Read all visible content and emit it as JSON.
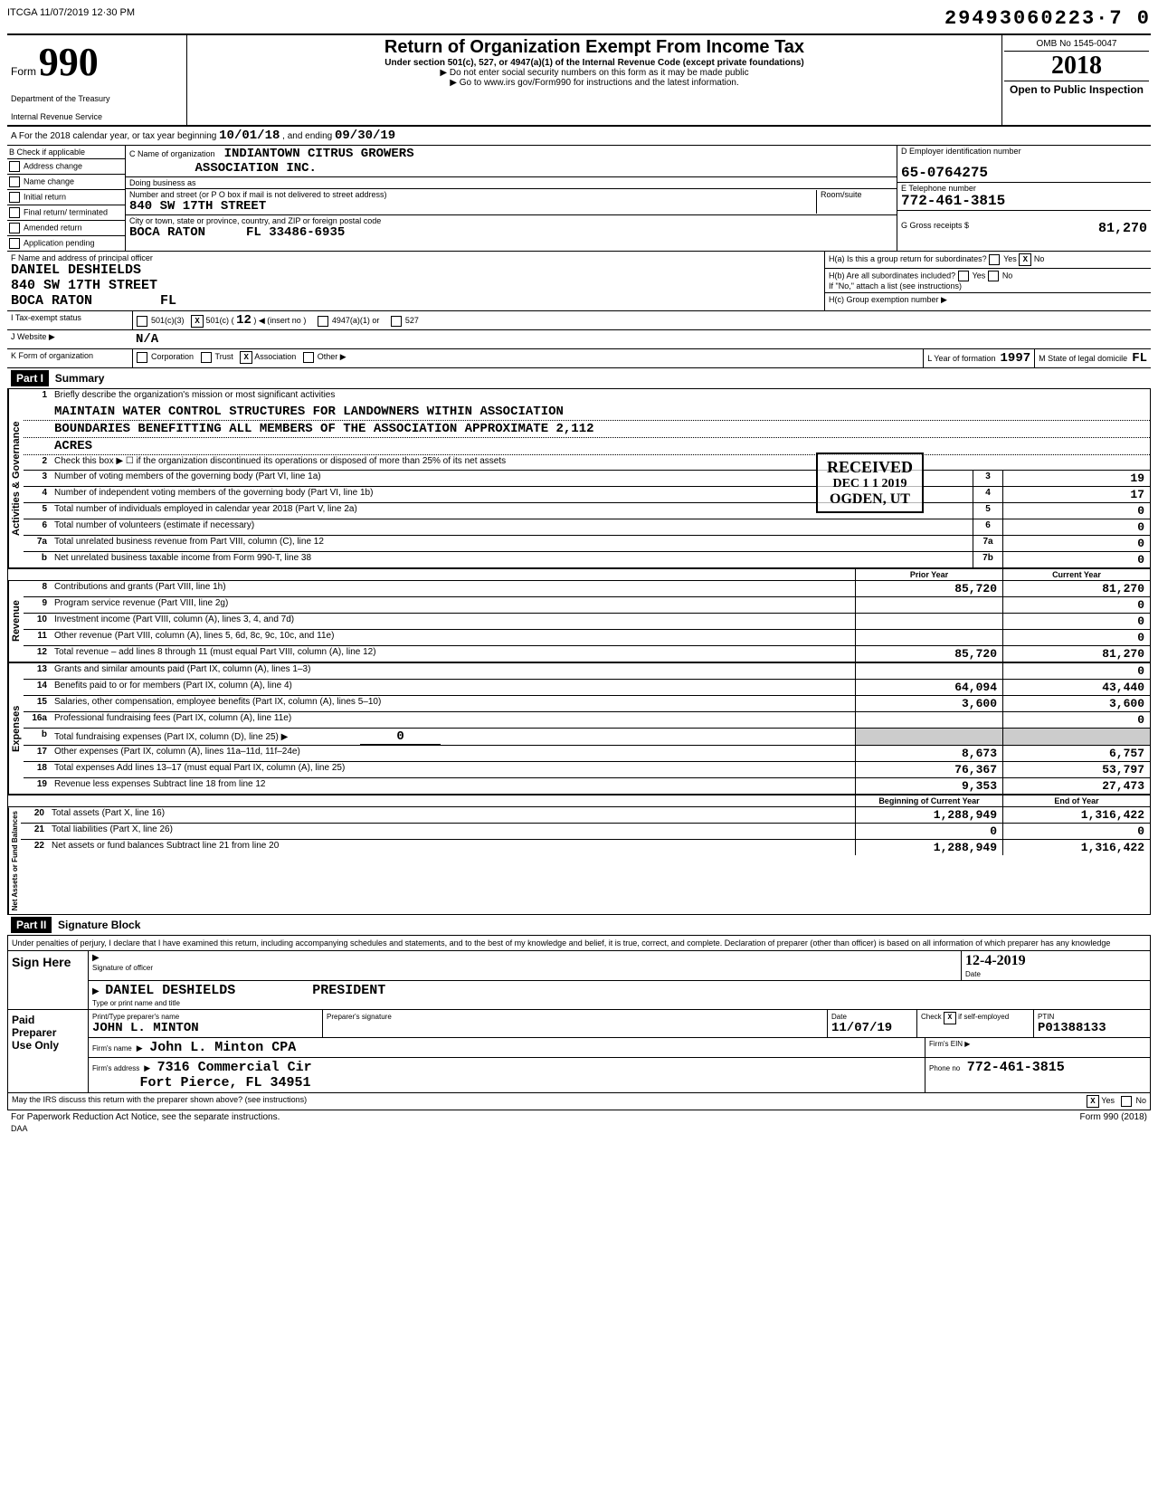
{
  "meta": {
    "software_stamp": "ITCGA 11/07/2019 12·30 PM",
    "dln": "29493060223·7  0",
    "omb": "OMB No 1545-0047",
    "tax_year": "2018",
    "open": "Open to Public Inspection",
    "form_footer": "Form 990 (2018)",
    "daa": "DAA",
    "paperwork": "For Paperwork Reduction Act Notice, see the separate instructions."
  },
  "header": {
    "form_label": "Form",
    "form_number": "990",
    "dept": "Department of the Treasury",
    "irs": "Internal Revenue Service",
    "title": "Return of Organization Exempt From Income Tax",
    "subtitle": "Under section 501(c), 527, or 4947(a)(1) of the Internal Revenue Code (except private foundations)",
    "note1": "▶ Do not enter social security numbers on this form as it may be made public",
    "note2": "▶ Go to www.irs gov/Form990 for instructions and the latest information."
  },
  "line_a": {
    "prefix": "A  For the 2018 calendar year, or tax year beginning",
    "begin": "10/01/18",
    "mid": ", and ending",
    "end": "09/30/19"
  },
  "col_b": {
    "label": "B  Check if applicable",
    "opts": [
      "Address change",
      "Name change",
      "Initial return",
      "Final return/ terminated",
      "Amended return",
      "Application pending"
    ]
  },
  "col_c": {
    "label_name": "C  Name of organization",
    "org_name1": "INDIANTOWN CITRUS GROWERS",
    "org_name2": "ASSOCIATION INC.",
    "dba_label": "Doing business as",
    "addr_label": "Number and street (or P O box if mail is not delivered to street address)",
    "street": "840 SW 17TH STREET",
    "room_label": "Room/suite",
    "city_label": "City or town, state or province, country, and ZIP or foreign postal code",
    "city": "BOCA RATON",
    "state_zip": "FL 33486-6935"
  },
  "col_de": {
    "d_label": "D Employer identification number",
    "ein": "65-0764275",
    "e_label": "E Telephone number",
    "phone": "772-461-3815",
    "g_label": "G Gross receipts $",
    "gross": "81,270"
  },
  "section_f": {
    "label": "F  Name and address of principal officer",
    "name": "DANIEL DESHIELDS",
    "street": "840 SW 17TH STREET",
    "city": "BOCA RATON",
    "state": "FL"
  },
  "section_h": {
    "ha": "H(a) Is this a group return for subordinates?",
    "ha_yes": "Yes",
    "ha_no": "No",
    "ha_no_x": "X",
    "hb": "H(b) Are all subordinates included?",
    "hb_note": "If \"No,\" attach a list (see instructions)",
    "hc": "H(c) Group exemption number ▶"
  },
  "row_i": {
    "label": "I   Tax-exempt status",
    "opt1": "501(c)(3)",
    "opt2_x": "X",
    "opt2": "501(c)",
    "opt2_num": "12",
    "opt2_insert": "◀ (insert no )",
    "opt3": "4947(a)(1) or",
    "opt4": "527"
  },
  "row_j": {
    "label": "J   Website ▶",
    "value": "N/A"
  },
  "row_k": {
    "label": "K  Form of organization",
    "opts": [
      "Corporation",
      "Trust",
      "Association",
      "Other ▶"
    ],
    "assoc_x": "X",
    "l_label": "L  Year of formation",
    "l_val": "1997",
    "m_label": "M  State of legal domicile",
    "m_val": "FL"
  },
  "part1": {
    "label": "Part I",
    "title": "Summary"
  },
  "governance": {
    "side": "Activities & Governance",
    "line1_label": "Briefly describe the organization's mission or most significant activities",
    "mission1": "MAINTAIN WATER CONTROL STRUCTURES FOR LANDOWNERS WITHIN ASSOCIATION",
    "mission2": "BOUNDARIES BENEFITTING ALL MEMBERS OF THE ASSOCIATION APPROXIMATE 2,112",
    "mission3": "ACRES",
    "line2": "Check this box ▶ ☐  if the organization discontinued its operations or disposed of more than 25% of its net assets",
    "line3": "Number of voting members of the governing body (Part VI, line 1a)",
    "line3_val": "19",
    "line4": "Number of independent voting members of the governing body (Part VI, line 1b)",
    "line4_val": "17",
    "line5": "Total number of individuals employed in calendar year 2018 (Part V, line 2a)",
    "line5_val": "0",
    "line6": "Total number of volunteers (estimate if necessary)",
    "line6_val": "0",
    "line7a": "Total unrelated business revenue from Part VIII, column (C), line 12",
    "line7a_val": "0",
    "line7b": "Net unrelated business taxable income from Form 990-T, line 38",
    "line7b_val": "0"
  },
  "stamps": {
    "received": "RECEIVED",
    "date": "DEC 1 1 2019",
    "ogden": "OGDEN, UT",
    "irs_osc": "IRS-OSC"
  },
  "cols": {
    "prior": "Prior Year",
    "current": "Current Year"
  },
  "revenue": {
    "side": "Revenue",
    "rows": [
      {
        "n": "8",
        "d": "Contributions and grants (Part VIII, line 1h)",
        "p": "85,720",
        "c": "81,270"
      },
      {
        "n": "9",
        "d": "Program service revenue (Part VIII, line 2g)",
        "p": "",
        "c": "0"
      },
      {
        "n": "10",
        "d": "Investment income (Part VIII, column (A), lines 3, 4, and 7d)",
        "p": "",
        "c": "0"
      },
      {
        "n": "11",
        "d": "Other revenue (Part VIII, column (A), lines 5, 6d, 8c, 9c, 10c, and 11e)",
        "p": "",
        "c": "0"
      },
      {
        "n": "12",
        "d": "Total revenue – add lines 8 through 11 (must equal Part VIII, column (A), line 12)",
        "p": "85,720",
        "c": "81,270"
      }
    ]
  },
  "expenses": {
    "side": "Expenses",
    "rows": [
      {
        "n": "13",
        "d": "Grants and similar amounts paid (Part IX, column (A), lines 1–3)",
        "p": "",
        "c": "0"
      },
      {
        "n": "14",
        "d": "Benefits paid to or for members (Part IX, column (A), line 4)",
        "p": "64,094",
        "c": "43,440"
      },
      {
        "n": "15",
        "d": "Salaries, other compensation, employee benefits (Part IX, column (A), lines 5–10)",
        "p": "3,600",
        "c": "3,600"
      },
      {
        "n": "16a",
        "d": "Professional fundraising fees (Part IX, column (A), line 11e)",
        "p": "",
        "c": "0"
      },
      {
        "n": "b",
        "d": "Total fundraising expenses (Part IX, column (D), line 25) ▶",
        "p": "grey",
        "c": "grey",
        "inline": "0"
      },
      {
        "n": "17",
        "d": "Other expenses (Part IX, column (A), lines 11a–11d, 11f–24e)",
        "p": "8,673",
        "c": "6,757"
      },
      {
        "n": "18",
        "d": "Total expenses  Add lines 13–17 (must equal Part IX, column (A), line 25)",
        "p": "76,367",
        "c": "53,797"
      },
      {
        "n": "19",
        "d": "Revenue less expenses  Subtract line 18 from line 12",
        "p": "9,353",
        "c": "27,473"
      }
    ]
  },
  "netassets": {
    "side": "Net Assets or Fund Balances",
    "hdr_p": "Beginning of Current Year",
    "hdr_c": "End of Year",
    "rows": [
      {
        "n": "20",
        "d": "Total assets (Part X, line 16)",
        "p": "1,288,949",
        "c": "1,316,422"
      },
      {
        "n": "21",
        "d": "Total liabilities (Part X, line 26)",
        "p": "0",
        "c": "0"
      },
      {
        "n": "22",
        "d": "Net assets or fund balances  Subtract line 21 from line 20",
        "p": "1,288,949",
        "c": "1,316,422"
      }
    ]
  },
  "part2": {
    "label": "Part II",
    "title": "Signature Block"
  },
  "penalty": "Under penalties of perjury, I declare that I have examined this return, including accompanying schedules and statements, and to the best of my knowledge and belief, it is true, correct, and complete. Declaration of preparer (other than officer) is based on all information of which preparer has any knowledge",
  "sign": {
    "left": "Sign Here",
    "sig_label": "Signature of officer",
    "date_label": "Date",
    "date_val": "12-4-2019",
    "name": "DANIEL DESHIELDS",
    "title": "PRESIDENT",
    "type_label": "Type or print name and title"
  },
  "preparer": {
    "left1": "Paid",
    "left2": "Preparer",
    "left3": "Use Only",
    "pname_label": "Print/Type preparer's name",
    "pname": "JOHN L. MINTON",
    "psig_label": "Preparer's signature",
    "pdate_label": "Date",
    "pdate": "11/07/19",
    "check_label": "Check",
    "check_x": "X",
    "check_if": "if self-employed",
    "ptin_label": "PTIN",
    "ptin": "P01388133",
    "firm_label": "Firm's name",
    "firm": "John L. Minton CPA",
    "ein_label": "Firm's EIN ▶",
    "addr_label": "Firm's address",
    "addr1": "7316 Commercial Cir",
    "addr2": "Fort Pierce, FL  34951",
    "phone_label": "Phone no",
    "phone": "772-461-3815"
  },
  "discuss": {
    "q": "May the IRS discuss this return with the preparer shown above? (see instructions)",
    "yes_x": "X",
    "yes": "Yes",
    "no": "No"
  }
}
